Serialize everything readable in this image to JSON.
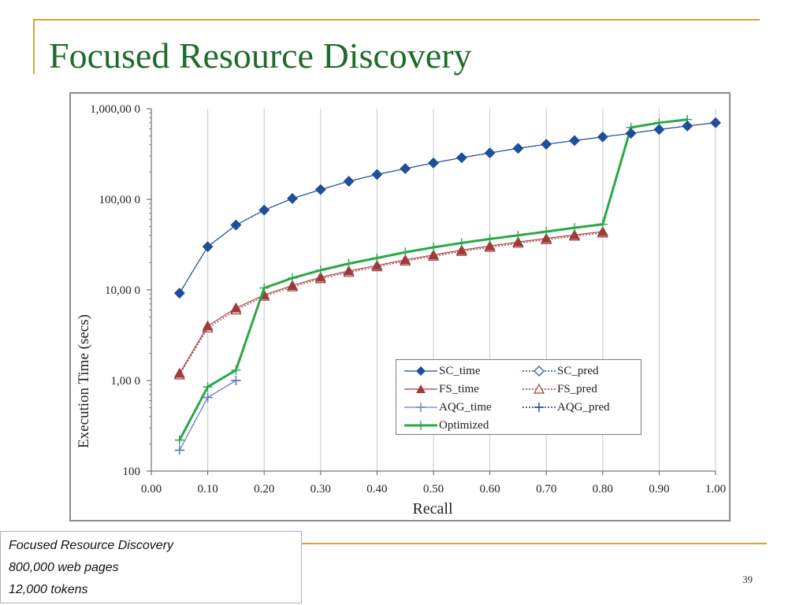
{
  "slide": {
    "title": "Focused Resource Discovery",
    "caption": [
      "Focused Resource Discovery",
      "800,000 web pages",
      "12,000 tokens"
    ],
    "page_number": "39",
    "accent_color": "#d7a733",
    "title_color": "#1f6b2c"
  },
  "chart_data": {
    "type": "line",
    "title": "",
    "xlabel": "Recall",
    "ylabel": "Execution Time (secs)",
    "x_scale": "linear",
    "y_scale": "log",
    "xlim": [
      0.0,
      1.0
    ],
    "ylim": [
      0.1,
      1000
    ],
    "x_ticks": [
      "0.00",
      "0.10",
      "0.20",
      "0.30",
      "0.40",
      "0.50",
      "0.60",
      "0.70",
      "0.80",
      "0.90",
      "1.00"
    ],
    "x_tick_values": [
      0.0,
      0.1,
      0.2,
      0.3,
      0.4,
      0.5,
      0.6,
      0.7,
      0.8,
      0.9,
      1.0
    ],
    "y_ticks": [
      "1,000,00 0",
      "100,00 0",
      "10,00 0",
      "1,00 0",
      "100"
    ],
    "y_tick_values": [
      1000,
      100,
      10,
      1,
      0.1
    ],
    "grid": "vertical",
    "legend_position": "lower-right",
    "series": [
      {
        "name": "SC_time",
        "color": "#1f4e9a",
        "marker": "diamond",
        "style": "solid",
        "x": [
          0.05,
          0.1,
          0.15,
          0.2,
          0.25,
          0.3,
          0.35,
          0.4,
          0.45,
          0.5,
          0.55,
          0.6,
          0.65,
          0.7,
          0.75,
          0.8,
          0.85,
          0.9,
          0.95,
          1.0
        ],
        "values": [
          9.2,
          30,
          52,
          76,
          102,
          128,
          158,
          188,
          218,
          252,
          288,
          325,
          365,
          405,
          445,
          488,
          535,
          590,
          645,
          700
        ]
      },
      {
        "name": "SC_pred",
        "color": "#1f4e9a",
        "marker": "diamond-open",
        "style": "dotted",
        "x": [
          0.05,
          0.1,
          0.15,
          0.2,
          0.25,
          0.3,
          0.35,
          0.4,
          0.45,
          0.5,
          0.55,
          0.6,
          0.65,
          0.7,
          0.75,
          0.8,
          0.85,
          0.9,
          0.95,
          1.0
        ],
        "values": [
          9.2,
          30,
          52,
          76,
          102,
          128,
          158,
          188,
          218,
          252,
          288,
          325,
          365,
          405,
          445,
          488,
          535,
          590,
          645,
          700
        ]
      },
      {
        "name": "FS_time",
        "color": "#a03a3a",
        "marker": "triangle",
        "style": "solid",
        "x": [
          0.05,
          0.1,
          0.15,
          0.2,
          0.25,
          0.3,
          0.35,
          0.4,
          0.45,
          0.5,
          0.55,
          0.6,
          0.65,
          0.7,
          0.75,
          0.8
        ],
        "values": [
          1.2,
          4.0,
          6.3,
          8.8,
          11.2,
          13.8,
          16.2,
          18.6,
          21.5,
          24.3,
          27.5,
          30.5,
          33.8,
          37.0,
          40.5,
          44.0
        ]
      },
      {
        "name": "FS_pred",
        "color": "#a03a3a",
        "marker": "triangle-open",
        "style": "dotted",
        "x": [
          0.05,
          0.1,
          0.15,
          0.2,
          0.25,
          0.3,
          0.35,
          0.4,
          0.45,
          0.5,
          0.55,
          0.6,
          0.65,
          0.7,
          0.75,
          0.8
        ],
        "values": [
          1.15,
          3.8,
          6.0,
          8.5,
          10.8,
          13.3,
          15.6,
          18.0,
          20.8,
          23.5,
          26.6,
          29.5,
          32.7,
          35.8,
          39.2,
          42.5
        ]
      },
      {
        "name": "AQG_time",
        "color": "#6a7fc8",
        "marker": "plus",
        "style": "solid",
        "x": [
          0.05,
          0.1,
          0.15
        ],
        "values": [
          0.17,
          0.65,
          1.0
        ]
      },
      {
        "name": "AQG_pred",
        "color": "#1f3f8a",
        "marker": "plus",
        "style": "dotted",
        "x": [
          0.05,
          0.1,
          0.15
        ],
        "values": [
          0.17,
          0.65,
          1.0
        ]
      },
      {
        "name": "Optimized",
        "color": "#2aa84a",
        "marker": "plus",
        "style": "solid-thick",
        "x": [
          0.05,
          0.1,
          0.15,
          0.2,
          0.25,
          0.3,
          0.35,
          0.4,
          0.45,
          0.5,
          0.55,
          0.6,
          0.65,
          0.7,
          0.75,
          0.8,
          0.85,
          0.9,
          0.95
        ],
        "values": [
          0.22,
          0.85,
          1.3,
          10.5,
          13.5,
          16.5,
          19.5,
          22.5,
          26.0,
          29.5,
          33.0,
          36.5,
          40.0,
          44.0,
          48.5,
          53.0,
          620,
          700,
          760
        ]
      }
    ]
  }
}
